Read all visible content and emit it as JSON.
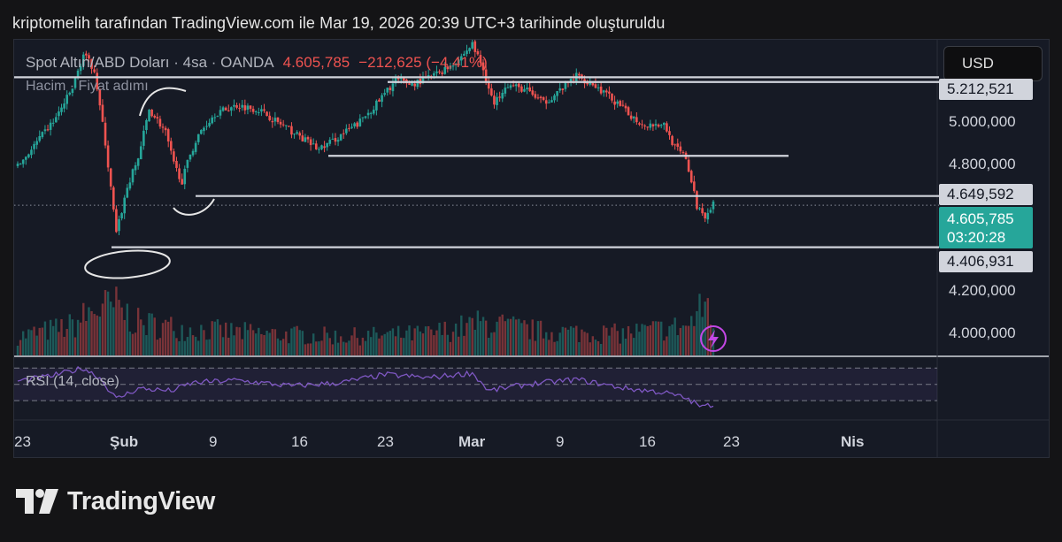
{
  "header": {
    "caption": "kriptomelih tarafından TradingView.com ile Mar 19, 2026 20:39 UTC+3 tarihinde oluşturuldu"
  },
  "legend": {
    "symbol": "Spot Altın/ABD Doları · 4sa · OANDA",
    "last": "4.605,785",
    "change": "−212,625 (−4,41%)",
    "sub": "Hacim · Fiyat adımı"
  },
  "currency_button": "USD",
  "rsi_label": "RSI (14, close)",
  "price_tags": {
    "top": "5.212,521",
    "mid": "4.649,592",
    "current": "4.605,785",
    "countdown": "03:20:28",
    "bottom": "4.406,931"
  },
  "brand": "TradingView",
  "colors": {
    "up": "#26a69a",
    "down": "#ef5350",
    "rsi": "#7e57c2",
    "level": "#d1d4dc",
    "background": "#161a25"
  },
  "chart_data": {
    "type": "candlestick",
    "price_axis_ticks": [
      "5.000,000",
      "4.800,000",
      "4.200,000",
      "4.000,000"
    ],
    "price_axis_values": [
      5000,
      4800,
      4200,
      4000
    ],
    "date_ticks": [
      "23",
      "Şub",
      "9",
      "16",
      "23",
      "Mar",
      "9",
      "16",
      "23",
      "Nis"
    ],
    "ylim": [
      3890,
      5390
    ],
    "horizontal_levels": [
      5212.521,
      5190,
      4840,
      4649.592,
      4406.931
    ],
    "last_price": 4605.785,
    "rsi_bands": [
      70,
      50,
      30
    ],
    "rsi_ylim": [
      15,
      80
    ],
    "candle_count": 255,
    "anchors": [
      [
        0,
        4790
      ],
      [
        8,
        4920
      ],
      [
        14,
        5020
      ],
      [
        20,
        5160
      ],
      [
        24,
        5320
      ],
      [
        28,
        5250
      ],
      [
        32,
        4900
      ],
      [
        36,
        4470
      ],
      [
        40,
        4690
      ],
      [
        44,
        4830
      ],
      [
        48,
        5060
      ],
      [
        51,
        5010
      ],
      [
        54,
        4950
      ],
      [
        57,
        4800
      ],
      [
        60,
        4720
      ],
      [
        63,
        4850
      ],
      [
        67,
        4960
      ],
      [
        72,
        5040
      ],
      [
        80,
        5080
      ],
      [
        88,
        5060
      ],
      [
        96,
        4990
      ],
      [
        102,
        4940
      ],
      [
        110,
        4870
      ],
      [
        116,
        4920
      ],
      [
        124,
        4990
      ],
      [
        132,
        5100
      ],
      [
        138,
        5200
      ],
      [
        144,
        5180
      ],
      [
        150,
        5210
      ],
      [
        156,
        5250
      ],
      [
        162,
        5310
      ],
      [
        166,
        5370
      ],
      [
        170,
        5250
      ],
      [
        174,
        5080
      ],
      [
        178,
        5180
      ],
      [
        186,
        5150
      ],
      [
        192,
        5090
      ],
      [
        198,
        5150
      ],
      [
        204,
        5220
      ],
      [
        210,
        5180
      ],
      [
        216,
        5120
      ],
      [
        222,
        5050
      ],
      [
        228,
        4990
      ],
      [
        236,
        4990
      ],
      [
        240,
        4880
      ],
      [
        244,
        4830
      ],
      [
        248,
        4600
      ],
      [
        251,
        4560
      ],
      [
        254,
        4610
      ]
    ],
    "volume_profile": [
      [
        0,
        0.35
      ],
      [
        20,
        0.55
      ],
      [
        28,
        0.85
      ],
      [
        36,
        0.9
      ],
      [
        44,
        0.6
      ],
      [
        60,
        0.5
      ],
      [
        90,
        0.4
      ],
      [
        120,
        0.35
      ],
      [
        150,
        0.4
      ],
      [
        170,
        0.6
      ],
      [
        190,
        0.45
      ],
      [
        220,
        0.4
      ],
      [
        245,
        0.55
      ],
      [
        252,
        1.0
      ],
      [
        254,
        0.6
      ]
    ],
    "rsi_anchors": [
      [
        0,
        54
      ],
      [
        12,
        60
      ],
      [
        24,
        70
      ],
      [
        30,
        58
      ],
      [
        36,
        32
      ],
      [
        44,
        45
      ],
      [
        56,
        42
      ],
      [
        64,
        52
      ],
      [
        80,
        55
      ],
      [
        100,
        48
      ],
      [
        118,
        52
      ],
      [
        134,
        62
      ],
      [
        150,
        58
      ],
      [
        166,
        64
      ],
      [
        172,
        42
      ],
      [
        186,
        50
      ],
      [
        204,
        56
      ],
      [
        222,
        45
      ],
      [
        236,
        40
      ],
      [
        244,
        33
      ],
      [
        250,
        22
      ],
      [
        254,
        26
      ]
    ]
  }
}
